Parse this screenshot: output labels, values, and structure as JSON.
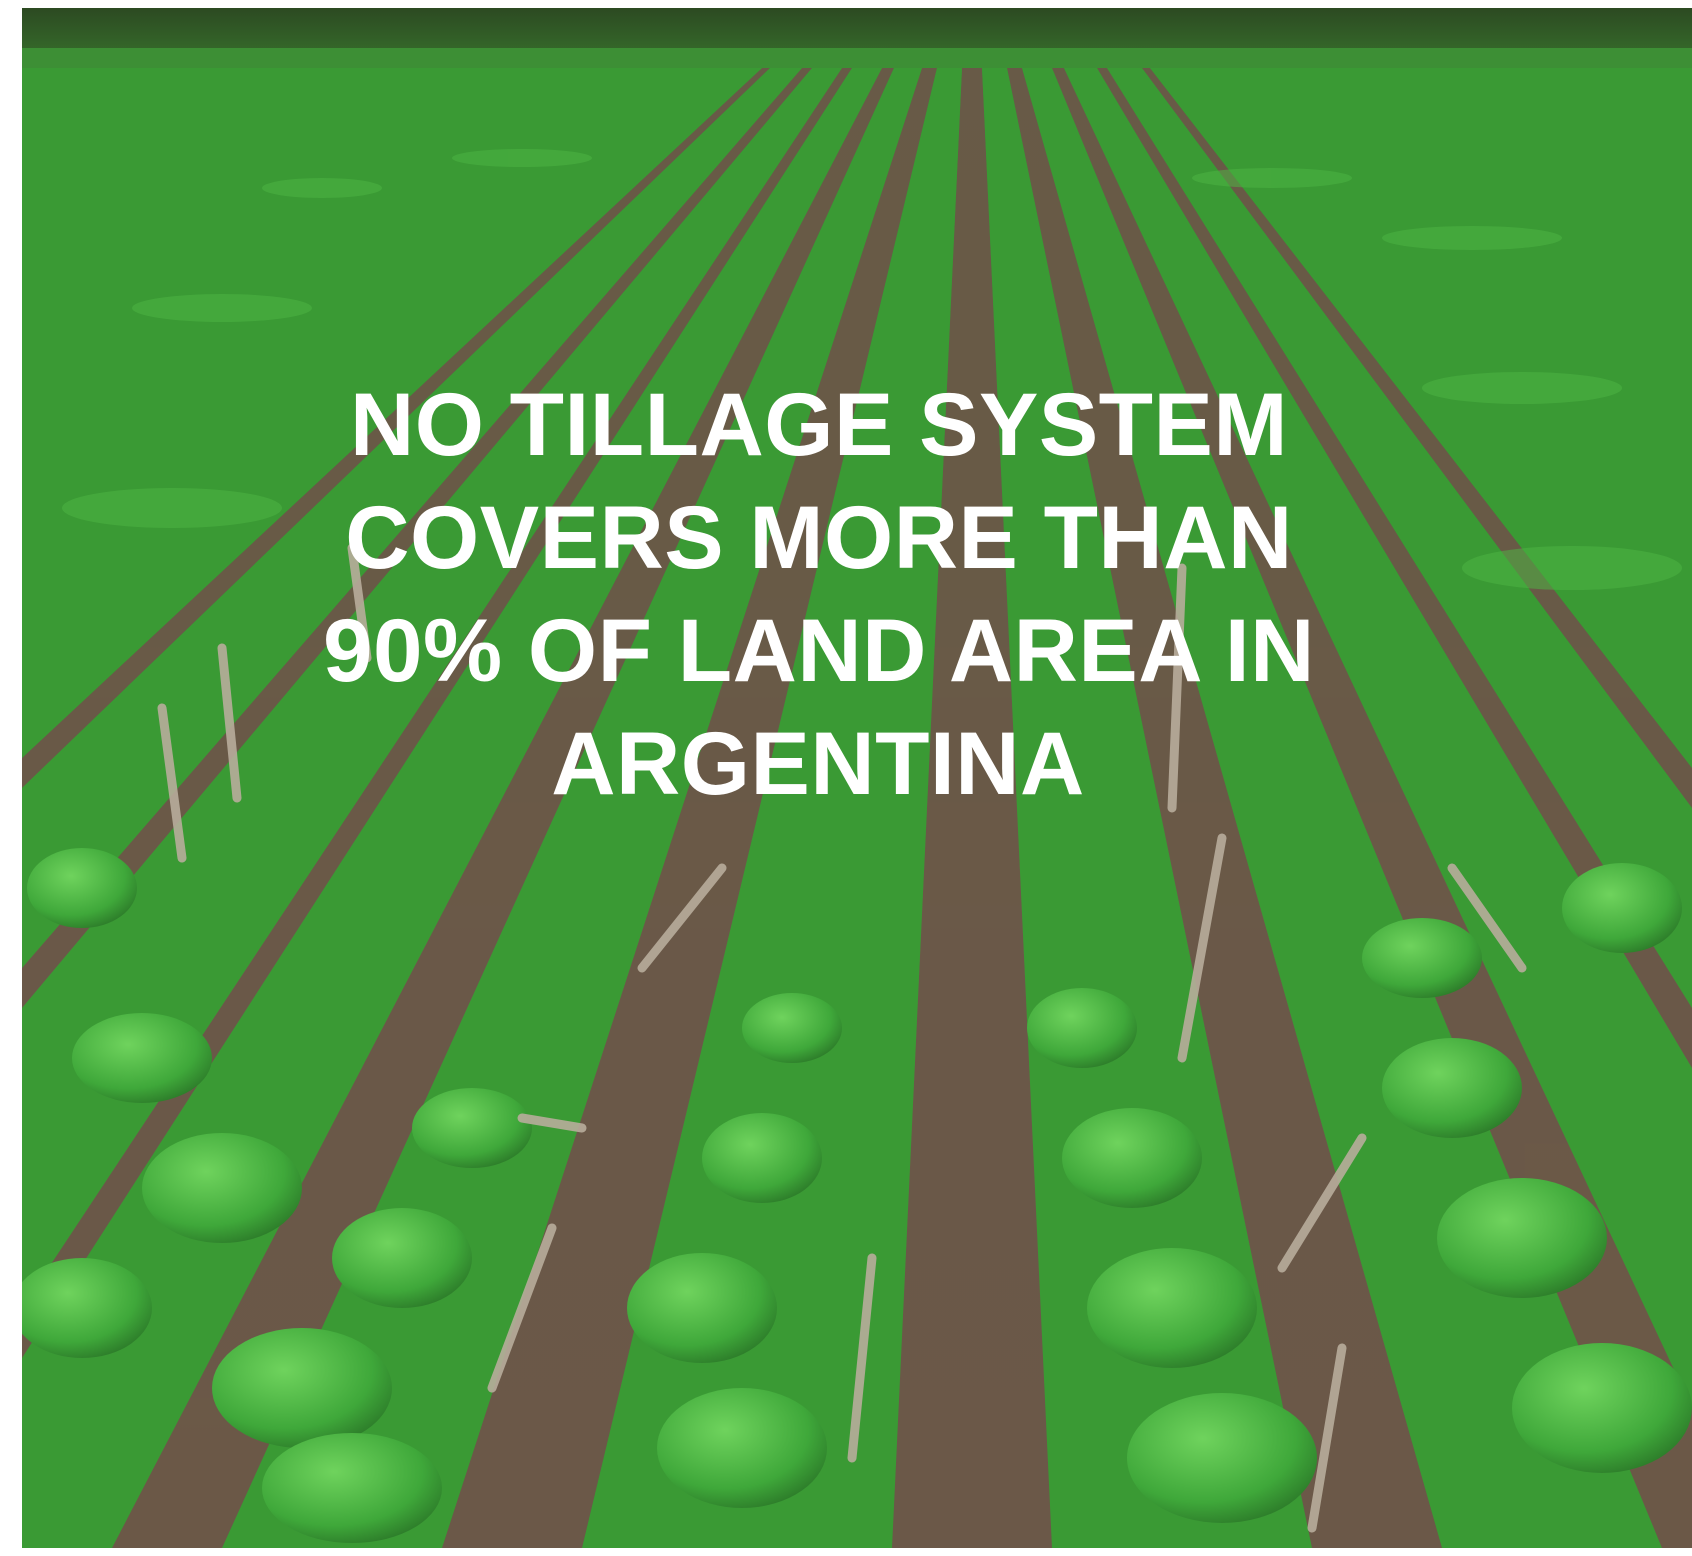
{
  "caption": {
    "lines": [
      "NO TILLAGE SYSTEM",
      "COVERS MORE THAN",
      "90% OF LAND AREA IN",
      "ARGENTINA"
    ]
  },
  "colors": {
    "background": "#ffffff",
    "text": "#ffffff",
    "crop_dark": "#2f8a2c",
    "crop_mid": "#3fa83a",
    "crop_light": "#5cc74f",
    "soil": "#6b5848",
    "stubble": "#b8ad9c"
  }
}
